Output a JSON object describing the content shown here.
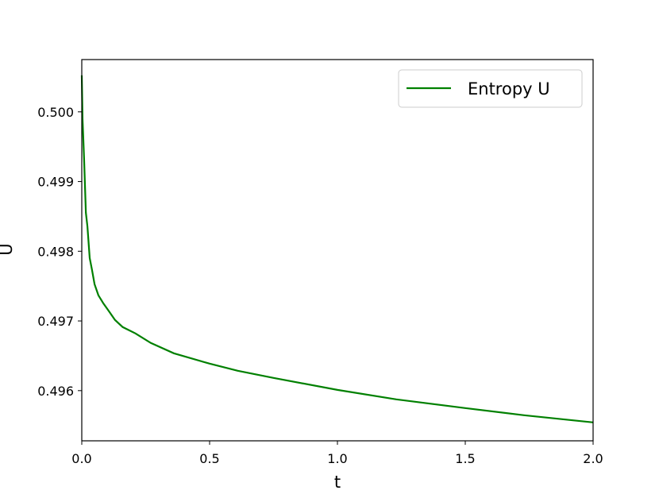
{
  "chart_data": {
    "type": "line",
    "x": [
      0.0,
      0.003,
      0.009,
      0.016,
      0.022,
      0.031,
      0.04,
      0.05,
      0.065,
      0.084,
      0.106,
      0.13,
      0.16,
      0.21,
      0.27,
      0.36,
      0.5,
      0.61,
      0.75,
      1.0,
      1.23,
      1.5,
      1.73,
      2.0
    ],
    "series": [
      {
        "name": "Entropy U",
        "color": "#008000",
        "values": [
          0.500524,
          0.499897,
          0.499328,
          0.498553,
          0.498359,
          0.497903,
          0.497732,
          0.497527,
          0.497368,
          0.497254,
          0.49714,
          0.497014,
          0.496912,
          0.496821,
          0.496684,
          0.496536,
          0.496387,
          0.496285,
          0.496182,
          0.496011,
          0.495875,
          0.495749,
          0.495647,
          0.495544
        ]
      }
    ],
    "xlabel": "t",
    "ylabel": "U",
    "xlim": [
      0,
      2
    ],
    "ylim": [
      0.49528,
      0.50075
    ],
    "xticks": [
      {
        "value": 0,
        "label": "0.0"
      },
      0.5,
      {
        "value": 1,
        "label": "1.0"
      },
      1.5,
      {
        "value": 2,
        "label": "2.0"
      }
    ],
    "yticks": [
      0.496,
      0.497,
      0.498,
      0.499,
      {
        "value": 0.5,
        "label": "0.500"
      }
    ],
    "legend": "upper right"
  }
}
